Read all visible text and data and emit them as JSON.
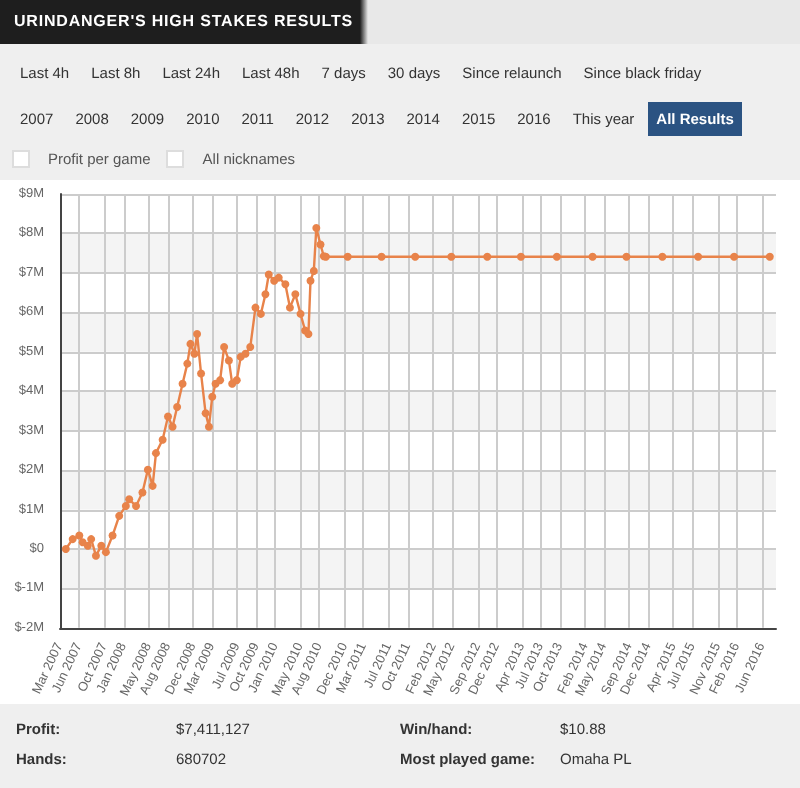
{
  "chart_data": {
    "type": "line",
    "title": "URINDANGER'S HIGH STAKES RESULTS",
    "annotations": [
      "Last 4h",
      "Last 8h",
      "Last 24h",
      "Last 48h",
      "7 days",
      "30 days",
      "Since relaunch",
      "Since black friday",
      "2007",
      "2008",
      "2009",
      "2010",
      "2011",
      "2012",
      "2013",
      "2014",
      "2015",
      "2016",
      "This year",
      "All Results",
      "Profit per game",
      "All nicknames",
      "Profit:",
      "$7,411,127",
      "Win/hand:",
      "$10.88",
      "Hands:",
      "680702",
      "Most played game:",
      "Omaha PL"
    ],
    "series": [
      {
        "color": "#e8834a",
        "x": [
          "2007-03-29",
          "2007-05-01",
          "2007-06-02",
          "2007-06-18",
          "2007-07-13",
          "2007-07-29",
          "2007-08-21",
          "2007-09-16",
          "2007-10-08",
          "2007-11-09",
          "2007-12-11",
          "2008-01-12",
          "2008-01-28",
          "2008-03-01",
          "2008-04-01",
          "2008-04-27",
          "2008-05-20",
          "2008-06-05",
          "2008-07-07",
          "2008-08-02",
          "2008-08-24",
          "2008-09-15",
          "2008-10-11",
          "2008-11-03",
          "2008-11-18",
          "2008-12-07",
          "2008-12-20",
          "2009-01-08",
          "2009-01-30",
          "2009-02-15",
          "2009-03-03",
          "2009-03-19",
          "2009-04-10",
          "2009-04-29",
          "2009-05-22",
          "2009-06-07",
          "2009-06-29",
          "2009-07-18",
          "2009-08-10",
          "2009-09-02",
          "2009-09-27",
          "2009-10-23",
          "2009-11-14",
          "2009-11-30",
          "2009-12-26",
          "2010-01-17",
          "2010-02-18",
          "2010-03-12",
          "2010-04-07",
          "2010-05-02",
          "2010-05-24",
          "2010-06-09",
          "2010-06-19",
          "2010-07-05",
          "2010-07-17",
          "2010-08-06",
          "2010-08-22",
          "2010-09-01",
          "2010-12-15",
          "2011-05-27",
          "2011-11-05",
          "2012-04-27",
          "2012-10-17",
          "2013-03-28",
          "2013-09-17",
          "2014-03-08",
          "2014-08-18",
          "2015-02-07",
          "2015-07-29",
          "2016-01-18",
          "2016-07-08"
        ],
        "values": [
          0,
          0.25,
          0.34,
          0.17,
          0.08,
          0.25,
          -0.17,
          0.08,
          -0.08,
          0.34,
          0.84,
          1.09,
          1.26,
          1.09,
          1.43,
          2.01,
          1.6,
          2.43,
          2.77,
          3.36,
          3.1,
          3.6,
          4.19,
          4.7,
          5.2,
          4.95,
          5.45,
          4.45,
          3.44,
          3.1,
          3.86,
          4.19,
          4.28,
          5.12,
          4.78,
          4.19,
          4.28,
          4.87,
          4.95,
          5.12,
          6.12,
          5.96,
          6.46,
          6.96,
          6.8,
          6.88,
          6.71,
          6.12,
          6.46,
          5.96,
          5.54,
          5.45,
          6.8,
          7.05,
          8.14,
          7.72,
          7.42,
          7.41,
          7.41,
          7.41,
          7.41,
          7.41,
          7.41,
          7.41,
          7.41,
          7.41,
          7.41,
          7.41,
          7.41,
          7.41,
          7.41
        ]
      }
    ],
    "xlim": [
      "2007-03-01",
      "2016-08-07"
    ],
    "xticks": [
      {
        "value": "2007-03",
        "label": "Mar 2007"
      },
      {
        "value": "2007-06",
        "label": "Jun 2007"
      },
      {
        "value": "2007-10",
        "label": "Oct 2007"
      },
      {
        "value": "2008-01",
        "label": "Jan 2008"
      },
      {
        "value": "2008-05",
        "label": "May 2008"
      },
      {
        "value": "2008-08",
        "label": "Aug 2008"
      },
      {
        "value": "2008-12",
        "label": "Dec 2008"
      },
      {
        "value": "2009-03",
        "label": "Mar 2009"
      },
      {
        "value": "2009-07",
        "label": "Jul 2009"
      },
      {
        "value": "2009-10",
        "label": "Oct 2009"
      },
      {
        "value": "2010-01",
        "label": "Jan 2010"
      },
      {
        "value": "2010-05",
        "label": "May 2010"
      },
      {
        "value": "2010-08",
        "label": "Aug 2010"
      },
      {
        "value": "2010-12",
        "label": "Dec 2010"
      },
      {
        "value": "2011-03",
        "label": "Mar 2011"
      },
      {
        "value": "2011-07",
        "label": "Jul 2011"
      },
      {
        "value": "2011-10",
        "label": "Oct 2011"
      },
      {
        "value": "2012-02",
        "label": "Feb 2012"
      },
      {
        "value": "2012-05",
        "label": "May 2012"
      },
      {
        "value": "2012-09",
        "label": "Sep 2012"
      },
      {
        "value": "2012-12",
        "label": "Dec 2012"
      },
      {
        "value": "2013-04",
        "label": "Apr 2013"
      },
      {
        "value": "2013-07",
        "label": "Jul 2013"
      },
      {
        "value": "2013-10",
        "label": "Oct 2013"
      },
      {
        "value": "2014-02",
        "label": "Feb 2014"
      },
      {
        "value": "2014-05",
        "label": "May 2014"
      },
      {
        "value": "2014-09",
        "label": "Sep 2014"
      },
      {
        "value": "2014-12",
        "label": "Dec 2014"
      },
      {
        "value": "2015-04",
        "label": "Apr 2015"
      },
      {
        "value": "2015-07",
        "label": "Jul 2015"
      },
      {
        "value": "2015-11",
        "label": "Nov 2015"
      },
      {
        "value": "2016-02",
        "label": "Feb 2016"
      },
      {
        "value": "2016-06",
        "label": "Jun 2016"
      }
    ],
    "ylim": [
      -2,
      9
    ],
    "yticks": [
      {
        "value": -2,
        "label": "$-2M"
      },
      {
        "value": -1,
        "label": "$-1M"
      },
      {
        "value": 0,
        "label": "$0"
      },
      {
        "value": 1,
        "label": "$1M"
      },
      {
        "value": 2,
        "label": "$2M"
      },
      {
        "value": 3,
        "label": "$3M"
      },
      {
        "value": 4,
        "label": "$4M"
      },
      {
        "value": 5,
        "label": "$5M"
      },
      {
        "value": 6,
        "label": "$6M"
      },
      {
        "value": 7,
        "label": "$7M"
      },
      {
        "value": 8,
        "label": "$8M"
      },
      {
        "value": 9,
        "label": "$9M"
      }
    ],
    "grid": true,
    "marker": "circle",
    "line_style": "solid"
  }
}
